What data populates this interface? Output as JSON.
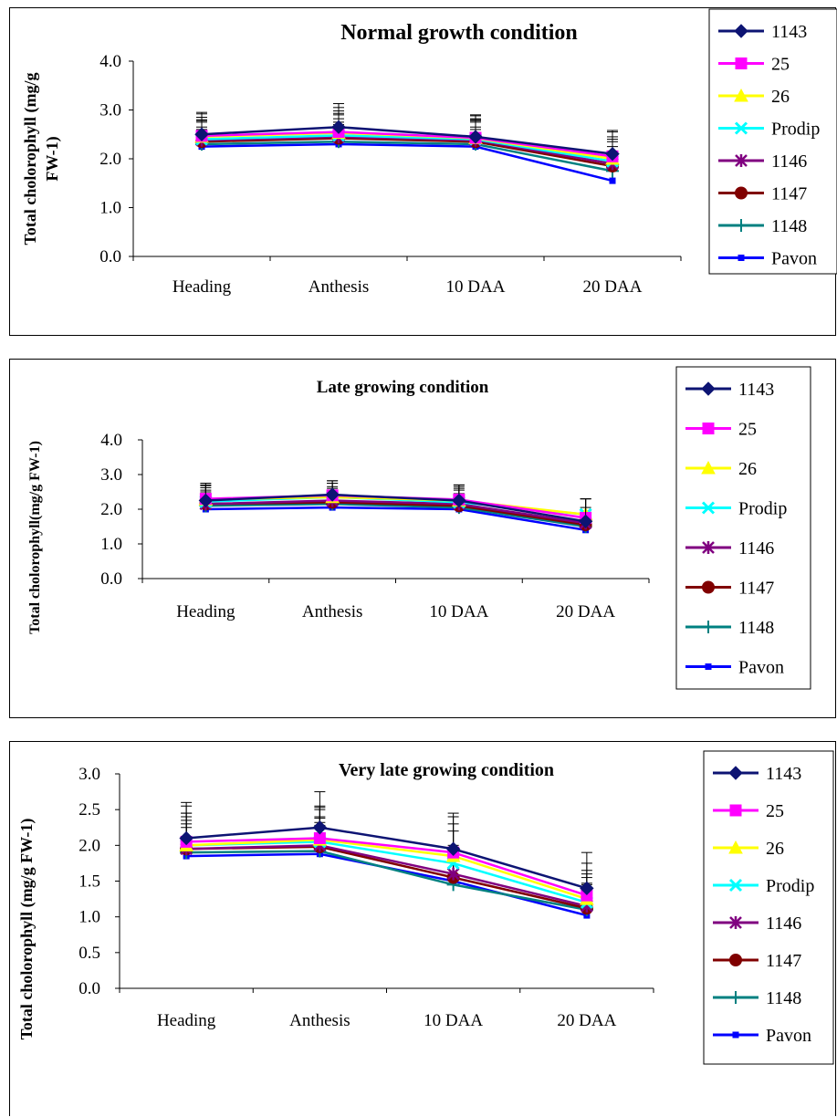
{
  "series_style": [
    {
      "name": "1143",
      "color": "#0d1473",
      "marker": "diamond"
    },
    {
      "name": "25",
      "color": "#ff00ff",
      "marker": "square"
    },
    {
      "name": "26",
      "color": "#ffff00",
      "marker": "triangle"
    },
    {
      "name": "Prodip",
      "color": "#00ffff",
      "marker": "x"
    },
    {
      "name": "1146",
      "color": "#800080",
      "marker": "star"
    },
    {
      "name": "1147",
      "color": "#800000",
      "marker": "circle"
    },
    {
      "name": "1148",
      "color": "#008080",
      "marker": "plus"
    },
    {
      "name": "Pavon",
      "color": "#0000ff",
      "marker": "small-square"
    }
  ],
  "chart_data": [
    {
      "type": "line",
      "title": "Normal growth condition",
      "xlabel": "",
      "ylabel": "Total cholorophyll (mg/g FW-1)",
      "categories": [
        "Heading",
        "Anthesis",
        "10 DAA",
        "20 DAA"
      ],
      "ylim": [
        0,
        4
      ],
      "yticks": [
        "0.0",
        "1.0",
        "2.0",
        "3.0",
        "4.0"
      ],
      "error_bars": true,
      "legend_position": "right",
      "series": [
        {
          "name": "1143",
          "values": [
            2.5,
            2.65,
            2.45,
            2.1
          ],
          "error": [
            0.45,
            0.48,
            0.45,
            0.48
          ]
        },
        {
          "name": "25",
          "values": [
            2.47,
            2.55,
            2.43,
            2.05
          ],
          "error": [
            0.45,
            0.5,
            0.45,
            0.5
          ]
        },
        {
          "name": "26",
          "values": [
            2.45,
            2.53,
            2.42,
            2.0
          ],
          "error": [
            0.4,
            0.45,
            0.4,
            0.45
          ]
        },
        {
          "name": "Prodip",
          "values": [
            2.4,
            2.48,
            2.4,
            1.95
          ],
          "error": [
            0.4,
            0.45,
            0.4,
            0.45
          ]
        },
        {
          "name": "1146",
          "values": [
            2.38,
            2.45,
            2.38,
            1.9
          ],
          "error": [
            0.4,
            0.45,
            0.4,
            0.45
          ]
        },
        {
          "name": "1147",
          "values": [
            2.35,
            2.42,
            2.35,
            1.85
          ],
          "error": [
            0.4,
            0.4,
            0.4,
            0.4
          ]
        },
        {
          "name": "1148",
          "values": [
            2.3,
            2.35,
            2.3,
            1.75
          ],
          "error": [
            0.35,
            0.4,
            0.35,
            0.4
          ]
        },
        {
          "name": "Pavon",
          "values": [
            2.25,
            2.3,
            2.25,
            1.55
          ],
          "error": [
            0.35,
            0.4,
            0.35,
            0.35
          ]
        }
      ]
    },
    {
      "type": "line",
      "title": "Late growing condition",
      "xlabel": "",
      "ylabel": "Total cholorophyll(mg/g FW-1)",
      "categories": [
        "Heading",
        "Anthesis",
        "10 DAA",
        "20 DAA"
      ],
      "ylim": [
        0,
        4
      ],
      "yticks": [
        "0.0",
        "1.0",
        "2.0",
        "3.0",
        "4.0"
      ],
      "error_bars": true,
      "legend_position": "right",
      "series": [
        {
          "name": "1143",
          "values": [
            2.25,
            2.42,
            2.25,
            1.65
          ],
          "error": [
            0.45,
            0.4,
            0.45,
            0.65
          ]
        },
        {
          "name": "25",
          "values": [
            2.3,
            2.4,
            2.28,
            1.75
          ],
          "error": [
            0.45,
            0.42,
            0.42,
            0.55
          ]
        },
        {
          "name": "26",
          "values": [
            2.28,
            2.35,
            2.25,
            1.85
          ],
          "error": [
            0.4,
            0.4,
            0.4,
            0.45
          ]
        },
        {
          "name": "Prodip",
          "values": [
            2.22,
            2.35,
            2.2,
            1.85
          ],
          "error": [
            0.4,
            0.4,
            0.4,
            0.45
          ]
        },
        {
          "name": "1146",
          "values": [
            2.15,
            2.25,
            2.15,
            1.6
          ],
          "error": [
            0.4,
            0.4,
            0.4,
            0.45
          ]
        },
        {
          "name": "1147",
          "values": [
            2.15,
            2.2,
            2.1,
            1.55
          ],
          "error": [
            0.35,
            0.4,
            0.35,
            0.4
          ]
        },
        {
          "name": "1148",
          "values": [
            2.1,
            2.15,
            2.05,
            1.5
          ],
          "error": [
            0.35,
            0.35,
            0.35,
            0.4
          ]
        },
        {
          "name": "Pavon",
          "values": [
            2.0,
            2.05,
            2.0,
            1.4
          ],
          "error": [
            0.35,
            0.35,
            0.35,
            0.4
          ]
        }
      ]
    },
    {
      "type": "line",
      "title": "Very late growing condition",
      "xlabel": "",
      "ylabel": "Total cholorophyll (mg/g FW-1)",
      "categories": [
        "Heading",
        "Anthesis",
        "10 DAA",
        "20 DAA"
      ],
      "ylim": [
        0,
        3
      ],
      "yticks": [
        "0.0",
        "0.5",
        "1.0",
        "1.5",
        "2.0",
        "2.5",
        "3.0"
      ],
      "error_bars": true,
      "legend_position": "right",
      "series": [
        {
          "name": "1143",
          "values": [
            2.1,
            2.25,
            1.95,
            1.4
          ],
          "error": [
            0.5,
            0.5,
            0.5,
            0.5
          ]
        },
        {
          "name": "25",
          "values": [
            2.05,
            2.1,
            1.9,
            1.3
          ],
          "error": [
            0.5,
            0.45,
            0.5,
            0.45
          ]
        },
        {
          "name": "26",
          "values": [
            2.0,
            2.08,
            1.85,
            1.25
          ],
          "error": [
            0.45,
            0.45,
            0.45,
            0.4
          ]
        },
        {
          "name": "Prodip",
          "values": [
            2.0,
            2.05,
            1.75,
            1.2
          ],
          "error": [
            0.45,
            0.45,
            0.45,
            0.4
          ]
        },
        {
          "name": "1146",
          "values": [
            1.95,
            2.0,
            1.6,
            1.15
          ],
          "error": [
            0.45,
            0.4,
            0.4,
            0.4
          ]
        },
        {
          "name": "1147",
          "values": [
            1.95,
            1.98,
            1.55,
            1.12
          ],
          "error": [
            0.4,
            0.4,
            0.4,
            0.35
          ]
        },
        {
          "name": "1148",
          "values": [
            1.9,
            1.92,
            1.45,
            1.1
          ],
          "error": [
            0.4,
            0.4,
            0.4,
            0.35
          ]
        },
        {
          "name": "Pavon",
          "values": [
            1.85,
            1.88,
            1.5,
            1.02
          ],
          "error": [
            0.4,
            0.4,
            0.4,
            0.35
          ]
        }
      ]
    }
  ]
}
